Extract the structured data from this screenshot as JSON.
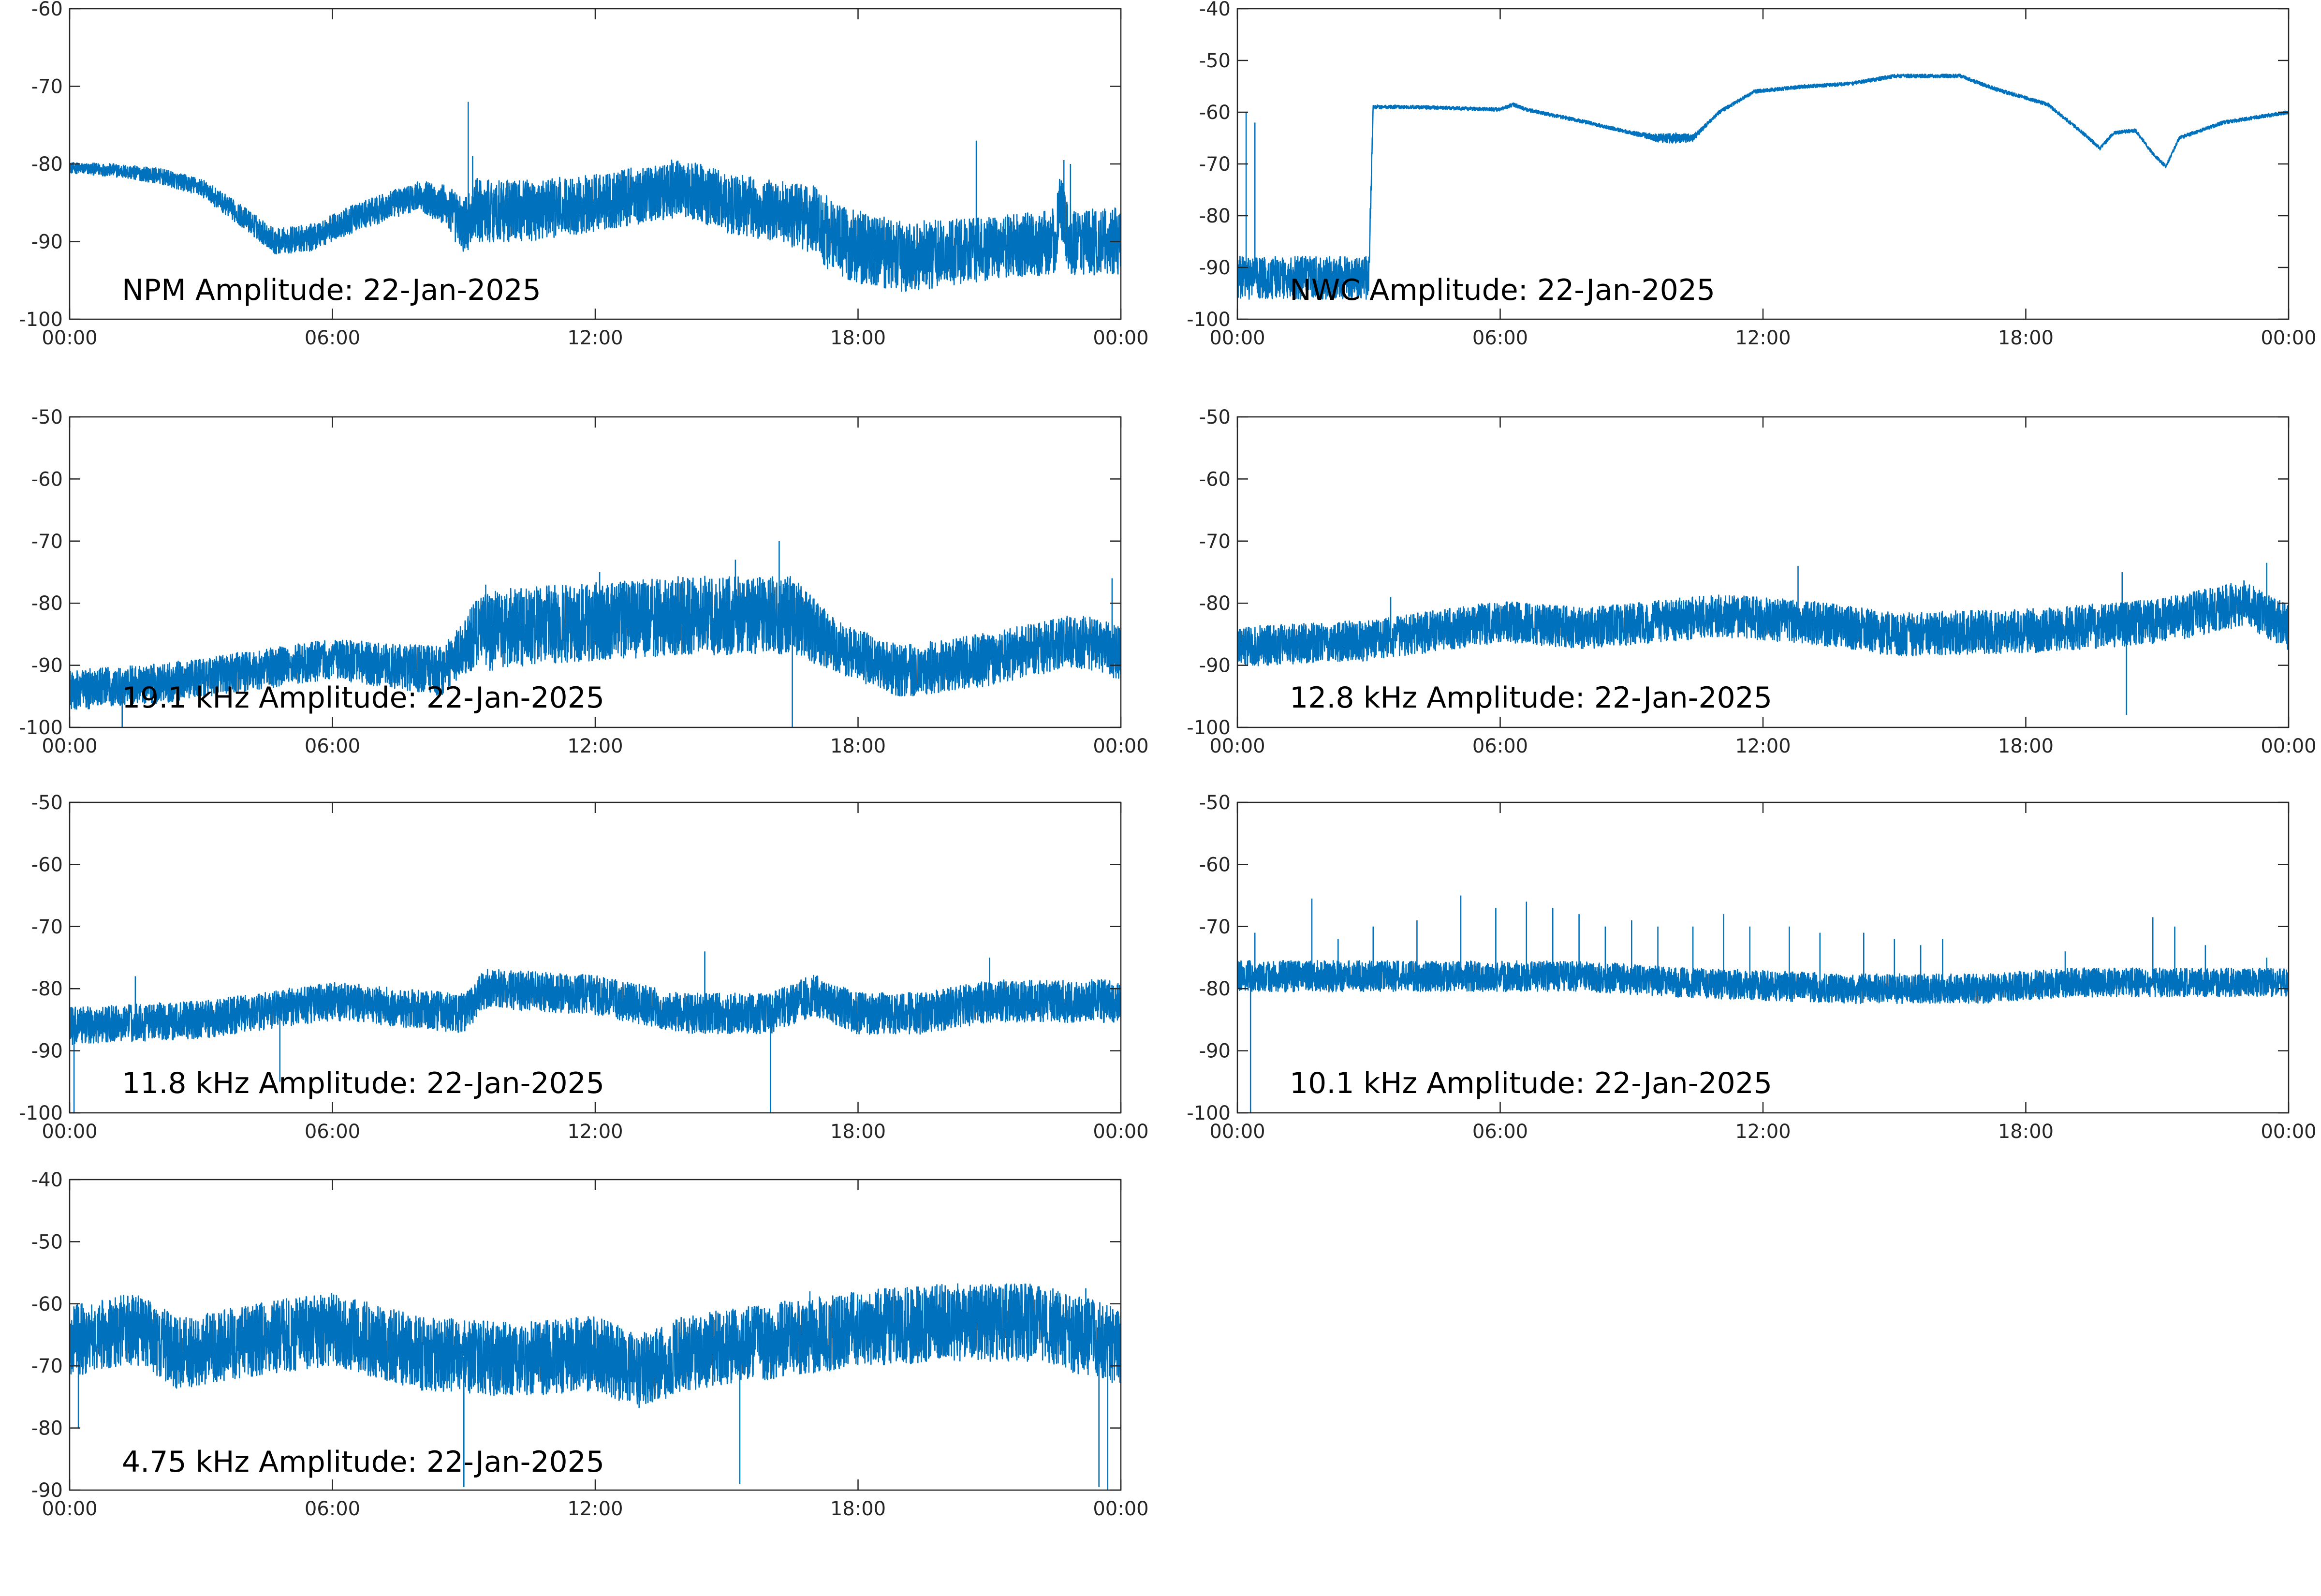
{
  "figure": {
    "line_color": "#0072BD",
    "axis_color": "#262626",
    "background": "#ffffff"
  },
  "chart_data": [
    {
      "type": "line",
      "title": "NPM Amplitude: 22-Jan-2025",
      "x_ticks": [
        "00:00",
        "06:00",
        "12:00",
        "18:00",
        "00:00"
      ],
      "y_ticks": [
        "-100",
        "-90",
        "-80",
        "-70",
        "-60"
      ],
      "ylim": [
        -100,
        -60
      ],
      "grid": false,
      "series": [
        {
          "profile": [
            [
              0,
              -80.5
            ],
            [
              1,
              -80.8
            ],
            [
              2,
              -81.5
            ],
            [
              3,
              -83
            ],
            [
              4,
              -87
            ],
            [
              4.7,
              -90
            ],
            [
              5.5,
              -89.5
            ],
            [
              6.5,
              -87
            ],
            [
              7.5,
              -85
            ],
            [
              8,
              -84
            ],
            [
              8.6,
              -85.5
            ],
            [
              9,
              -88
            ],
            [
              9.3,
              -86
            ],
            [
              10.5,
              -86
            ],
            [
              12,
              -85
            ],
            [
              14,
              -83
            ],
            [
              15,
              -85
            ],
            [
              16,
              -86
            ],
            [
              17,
              -87
            ],
            [
              17.5,
              -90
            ],
            [
              19,
              -92
            ],
            [
              21,
              -91
            ],
            [
              22.5,
              -90
            ],
            [
              22.6,
              -85
            ],
            [
              22.8,
              -90
            ],
            [
              24,
              -90
            ]
          ],
          "noise": [
            [
              0,
              0.6
            ],
            [
              3,
              1
            ],
            [
              5,
              1.5
            ],
            [
              8,
              1.6
            ],
            [
              9.3,
              3.6
            ],
            [
              12,
              3.2
            ],
            [
              16,
              3.4
            ],
            [
              17.5,
              4.2
            ],
            [
              21,
              3.6
            ],
            [
              24,
              3.8
            ]
          ],
          "spikes": [
            [
              9.1,
              -72
            ],
            [
              9.2,
              -79
            ],
            [
              20.7,
              -77
            ],
            [
              22.7,
              -79.5
            ],
            [
              22.85,
              -80
            ]
          ]
        }
      ]
    },
    {
      "type": "line",
      "title": "NWC Amplitude: 22-Jan-2025",
      "x_ticks": [
        "00:00",
        "06:00",
        "12:00",
        "18:00",
        "00:00"
      ],
      "y_ticks": [
        "-100",
        "-90",
        "-80",
        "-70",
        "-60",
        "-50",
        "-40"
      ],
      "ylim": [
        -100,
        -40
      ],
      "grid": false,
      "series": [
        {
          "profile": [
            [
              0,
              -92
            ],
            [
              3,
              -92
            ],
            [
              3.1,
              -59
            ],
            [
              4,
              -59
            ],
            [
              6,
              -59.5
            ],
            [
              6.3,
              -58.5
            ],
            [
              6.6,
              -59.5
            ],
            [
              8,
              -62
            ],
            [
              9,
              -64
            ],
            [
              9.6,
              -65
            ],
            [
              10.4,
              -65
            ],
            [
              11,
              -60
            ],
            [
              11.8,
              -56
            ],
            [
              13,
              -55
            ],
            [
              14,
              -54.5
            ],
            [
              15,
              -53
            ],
            [
              16.5,
              -53
            ],
            [
              17.3,
              -55.5
            ],
            [
              18.5,
              -58.5
            ],
            [
              19.3,
              -64
            ],
            [
              19.7,
              -67
            ],
            [
              20,
              -64
            ],
            [
              20.5,
              -63.5
            ],
            [
              20.9,
              -68
            ],
            [
              21.2,
              -70.5
            ],
            [
              21.5,
              -65
            ],
            [
              22.5,
              -62
            ],
            [
              24,
              -60
            ]
          ],
          "noise": [
            [
              0,
              3.6
            ],
            [
              3,
              3.6
            ],
            [
              3.1,
              0.3
            ],
            [
              9,
              0.3
            ],
            [
              10,
              0.9
            ],
            [
              10.8,
              0.3
            ],
            [
              24,
              0.3
            ]
          ],
          "spikes": [
            [
              0.2,
              -60
            ],
            [
              0.4,
              -62
            ],
            [
              3.2,
              -58.5
            ],
            [
              3.35,
              -58.8
            ],
            [
              3.5,
              -59
            ],
            [
              3.6,
              -58.5
            ],
            [
              3.8,
              -59
            ]
          ]
        }
      ]
    },
    {
      "type": "line",
      "title": "19.1 kHz Amplitude: 22-Jan-2025",
      "x_ticks": [
        "00:00",
        "06:00",
        "12:00",
        "18:00",
        "00:00"
      ],
      "y_ticks": [
        "-100",
        "-90",
        "-80",
        "-70",
        "-60",
        "-50"
      ],
      "ylim": [
        -100,
        -50
      ],
      "grid": false,
      "series": [
        {
          "profile": [
            [
              0,
              -94
            ],
            [
              2,
              -93
            ],
            [
              4,
              -91
            ],
            [
              6,
              -89
            ],
            [
              8.5,
              -91
            ],
            [
              9.3,
              -85
            ],
            [
              10,
              -84
            ],
            [
              12,
              -83
            ],
            [
              14,
              -82
            ],
            [
              16.5,
              -82
            ],
            [
              17.5,
              -87
            ],
            [
              19,
              -91
            ],
            [
              21,
              -89
            ],
            [
              23,
              -86
            ],
            [
              24,
              -88
            ]
          ],
          "noise": [
            [
              0,
              2.8
            ],
            [
              6,
              2.8
            ],
            [
              9,
              3.6
            ],
            [
              9.3,
              5.5
            ],
            [
              16.5,
              5.5
            ],
            [
              17.5,
              3.6
            ],
            [
              24,
              3.8
            ]
          ],
          "spikes": [
            [
              9.5,
              -77
            ],
            [
              12.1,
              -75
            ],
            [
              16.2,
              -70
            ],
            [
              15.2,
              -73
            ],
            [
              1.2,
              -100
            ],
            [
              16.5,
              -100
            ],
            [
              23.8,
              -76
            ]
          ]
        }
      ]
    },
    {
      "type": "line",
      "title": "12.8 kHz Amplitude: 22-Jan-2025",
      "x_ticks": [
        "00:00",
        "06:00",
        "12:00",
        "18:00",
        "00:00"
      ],
      "y_ticks": [
        "-100",
        "-90",
        "-80",
        "-70",
        "-60",
        "-50"
      ],
      "ylim": [
        -100,
        -50
      ],
      "grid": false,
      "series": [
        {
          "profile": [
            [
              0,
              -87
            ],
            [
              3,
              -86
            ],
            [
              6,
              -83
            ],
            [
              8,
              -84
            ],
            [
              11,
              -82
            ],
            [
              13,
              -83
            ],
            [
              15,
              -85
            ],
            [
              18,
              -84.5
            ],
            [
              21,
              -83
            ],
            [
              23,
              -80
            ],
            [
              24,
              -84
            ]
          ],
          "noise": [
            [
              0,
              2.8
            ],
            [
              24,
              3.2
            ]
          ],
          "spikes": [
            [
              12.8,
              -74
            ],
            [
              20.2,
              -75
            ],
            [
              23.5,
              -73.5
            ],
            [
              20.3,
              -98
            ],
            [
              3.5,
              -79
            ]
          ]
        }
      ]
    },
    {
      "type": "line",
      "title": "11.8 kHz Amplitude: 22-Jan-2025",
      "x_ticks": [
        "00:00",
        "06:00",
        "12:00",
        "18:00",
        "00:00"
      ],
      "y_ticks": [
        "-100",
        "-90",
        "-80",
        "-70",
        "-60",
        "-50"
      ],
      "ylim": [
        -100,
        -50
      ],
      "grid": false,
      "series": [
        {
          "profile": [
            [
              0,
              -86
            ],
            [
              3,
              -85
            ],
            [
              6,
              -82
            ],
            [
              9,
              -84
            ],
            [
              9.5,
              -80
            ],
            [
              12,
              -81
            ],
            [
              14,
              -84
            ],
            [
              16,
              -84
            ],
            [
              17,
              -81
            ],
            [
              18,
              -84
            ],
            [
              19.5,
              -84
            ],
            [
              21,
              -82
            ],
            [
              24,
              -82
            ]
          ],
          "noise": [
            [
              0,
              2.6
            ],
            [
              24,
              3
            ]
          ],
          "spikes": [
            [
              0.1,
              -100
            ],
            [
              16,
              -100
            ],
            [
              14.5,
              -74
            ],
            [
              21,
              -75
            ],
            [
              1.5,
              -78
            ],
            [
              4.8,
              -95
            ]
          ]
        }
      ]
    },
    {
      "type": "line",
      "title": "10.1 kHz Amplitude: 22-Jan-2025",
      "x_ticks": [
        "00:00",
        "06:00",
        "12:00",
        "18:00",
        "00:00"
      ],
      "y_ticks": [
        "-100",
        "-90",
        "-80",
        "-70",
        "-60",
        "-50"
      ],
      "ylim": [
        -100,
        -50
      ],
      "grid": false,
      "series": [
        {
          "profile": [
            [
              0,
              -78
            ],
            [
              4,
              -78
            ],
            [
              8,
              -78
            ],
            [
              10,
              -79
            ],
            [
              14,
              -80
            ],
            [
              17,
              -80
            ],
            [
              19,
              -79
            ],
            [
              21,
              -79
            ],
            [
              24,
              -79
            ]
          ],
          "noise": [
            [
              0,
              2.2
            ],
            [
              24,
              2
            ]
          ],
          "spikes": [
            [
              0.3,
              -100
            ],
            [
              0.4,
              -71
            ],
            [
              1.7,
              -65.5
            ],
            [
              2.3,
              -72
            ],
            [
              3.1,
              -70
            ],
            [
              4.1,
              -69
            ],
            [
              5.1,
              -65
            ],
            [
              5.9,
              -67
            ],
            [
              6.6,
              -66
            ],
            [
              7.2,
              -67
            ],
            [
              7.8,
              -68
            ],
            [
              8.4,
              -70
            ],
            [
              9,
              -69
            ],
            [
              9.6,
              -70
            ],
            [
              10.4,
              -70
            ],
            [
              11.1,
              -68
            ],
            [
              11.7,
              -70
            ],
            [
              12.6,
              -70
            ],
            [
              13.3,
              -71
            ],
            [
              14.3,
              -71
            ],
            [
              15,
              -72
            ],
            [
              15.6,
              -73
            ],
            [
              16.1,
              -72
            ],
            [
              18.9,
              -74
            ],
            [
              20.9,
              -68.5
            ],
            [
              21.4,
              -70
            ],
            [
              22.1,
              -73
            ],
            [
              23.5,
              -75
            ]
          ]
        }
      ]
    },
    {
      "type": "line",
      "title": "4.75 kHz Amplitude: 22-Jan-2025",
      "x_ticks": [
        "00:00",
        "06:00",
        "12:00",
        "18:00",
        "00:00"
      ],
      "y_ticks": [
        "-90",
        "-80",
        "-70",
        "-60",
        "-50",
        "-40"
      ],
      "ylim": [
        -90,
        -40
      ],
      "grid": false,
      "series": [
        {
          "profile": [
            [
              0,
              -66
            ],
            [
              1.5,
              -64
            ],
            [
              2.5,
              -68
            ],
            [
              4,
              -66
            ],
            [
              6,
              -64
            ],
            [
              8,
              -68
            ],
            [
              10,
              -69
            ],
            [
              12,
              -68
            ],
            [
              13,
              -71
            ],
            [
              14,
              -68
            ],
            [
              16,
              -66
            ],
            [
              18,
              -64
            ],
            [
              20,
              -63
            ],
            [
              22,
              -63
            ],
            [
              24,
              -67
            ]
          ],
          "noise": [
            [
              0,
              5
            ],
            [
              24,
              5.5
            ]
          ],
          "spikes": [
            [
              0.2,
              -80
            ],
            [
              9,
              -89.5
            ],
            [
              15.3,
              -89
            ],
            [
              23.5,
              -89.5
            ],
            [
              23.7,
              -90
            ],
            [
              16.9,
              -58
            ],
            [
              23.2,
              -57.5
            ],
            [
              20.9,
              -58.5
            ]
          ]
        }
      ]
    }
  ]
}
